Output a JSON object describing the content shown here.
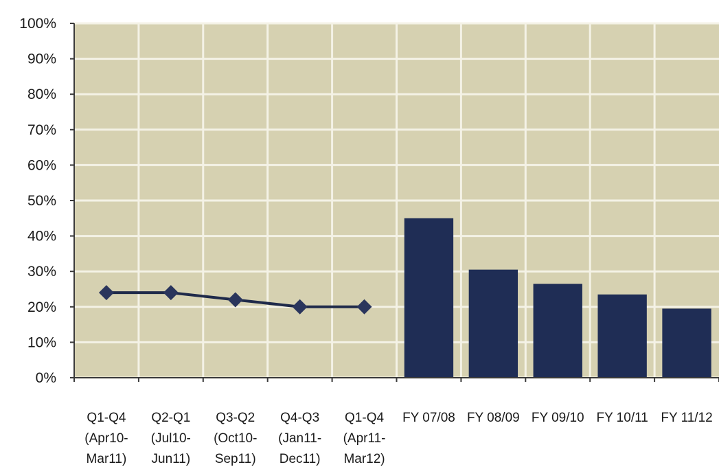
{
  "chart_data": {
    "type": "line+bar",
    "categories": [
      [
        "Q1-Q4",
        "(Apr10-",
        "Mar11)"
      ],
      [
        "Q2-Q1",
        "(Jul10-",
        "Jun11)"
      ],
      [
        "Q3-Q2",
        "(Oct10-",
        "Sep11)"
      ],
      [
        "Q4-Q3",
        "(Jan11-",
        "Dec11)"
      ],
      [
        "Q1-Q4",
        "(Apr11-",
        "Mar12)"
      ],
      [
        "FY 07/08"
      ],
      [
        "FY 08/09"
      ],
      [
        "FY 09/10"
      ],
      [
        "FY 10/11"
      ],
      [
        "FY 11/12"
      ]
    ],
    "series": [
      {
        "type": "line",
        "values": [
          24,
          24,
          22,
          20,
          20,
          null,
          null,
          null,
          null,
          null
        ]
      },
      {
        "type": "bar",
        "values": [
          null,
          null,
          null,
          null,
          null,
          45,
          30.5,
          26.5,
          23.5,
          19.5
        ]
      }
    ],
    "ylim": [
      0,
      100
    ],
    "yticks": [
      "0%",
      "10%",
      "20%",
      "30%",
      "40%",
      "50%",
      "60%",
      "70%",
      "80%",
      "90%",
      "100%"
    ],
    "grid": true,
    "colors": {
      "plot_bg": "#d6d1b1",
      "grid": "#f4f2e6",
      "line": "#1f2a4a",
      "marker": "#2a355c",
      "bar": "#1f2d55"
    }
  }
}
